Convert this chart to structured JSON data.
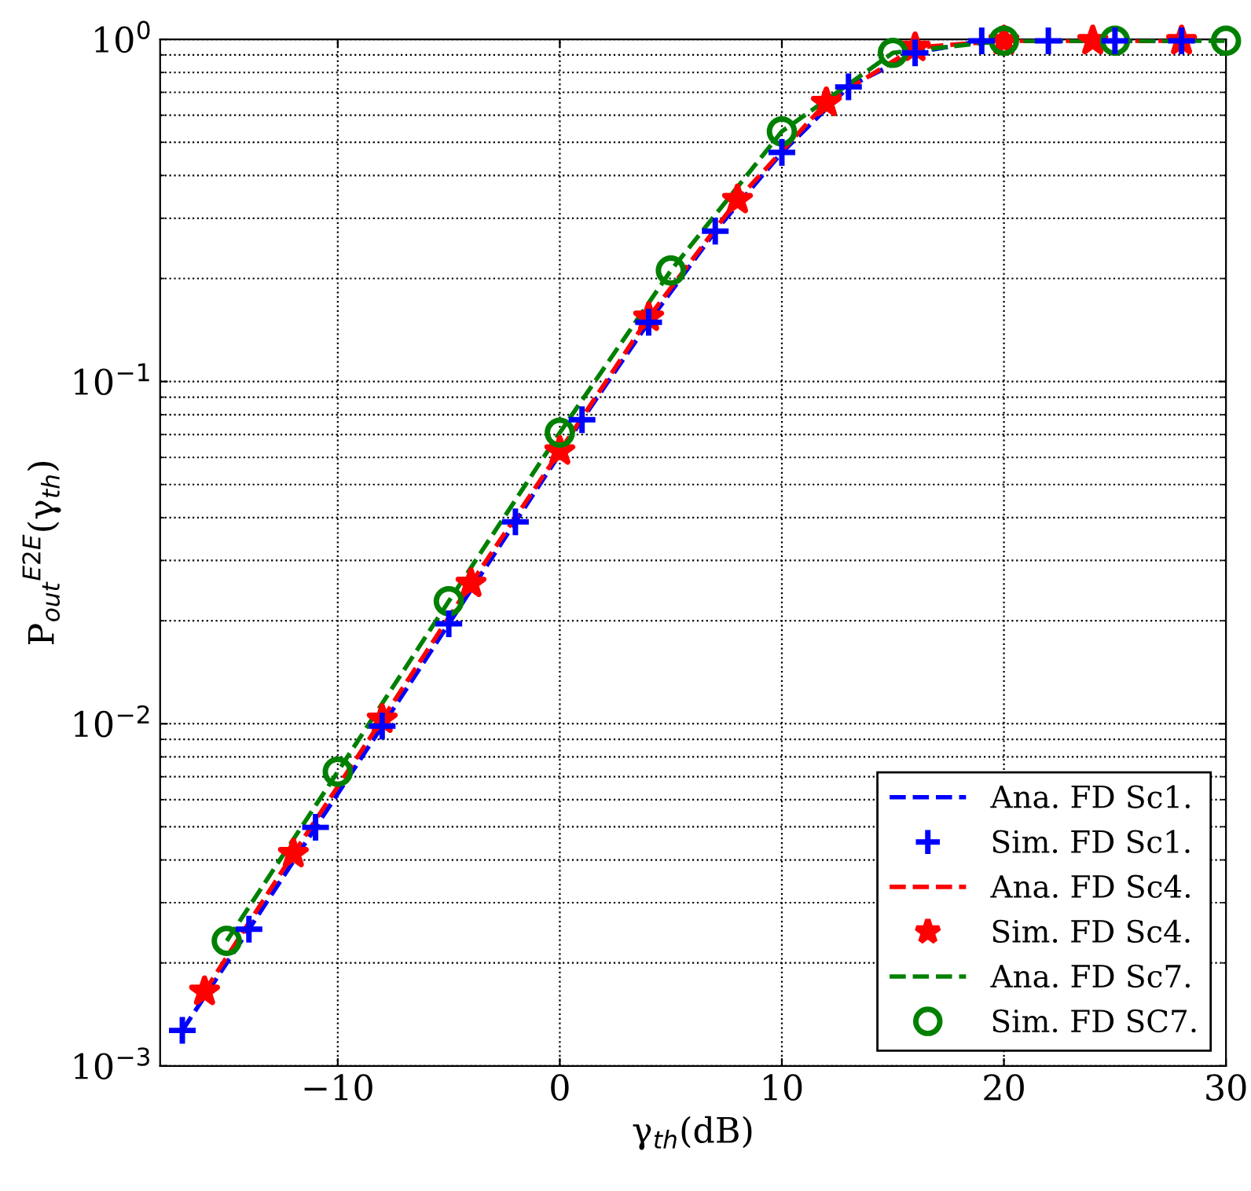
{
  "chart_data": {
    "type": "line",
    "xlabel": "γ$_{th}$(dB)",
    "ylabel": "P$_{out}$$^{E2E}$(γ$_{th}$)",
    "log": "y",
    "grid": true,
    "legend": "bottom right",
    "xlim": [
      -18,
      30
    ],
    "xticks": [
      {
        "value": -10,
        "label": "−10"
      },
      0,
      10,
      20,
      30
    ],
    "ylim": [
      0.001,
      1
    ],
    "yticks": [
      {
        "value": 0.001,
        "label": "10$^{−3}$"
      },
      {
        "value": 0.01,
        "label": "10$^{−2}$"
      },
      {
        "value": 0.1,
        "label": "10$^{−1}$"
      },
      {
        "value": 1,
        "label": "10$^{0}$"
      }
    ],
    "series": [
      {
        "name": "Ana. FD Sc1.",
        "color": "#0000ff",
        "marker": "none",
        "line_style": "dashed",
        "x": [
          -17,
          -14,
          -11,
          -8,
          -5,
          -2,
          1,
          4,
          7,
          10,
          13,
          16,
          19,
          22,
          25,
          28
        ],
        "values": [
          0.00127,
          0.00251,
          0.00498,
          0.00984,
          0.0196,
          0.0389,
          0.0773,
          0.149,
          0.275,
          0.467,
          0.726,
          0.913,
          0.99,
          0.99,
          0.99,
          0.99
        ]
      },
      {
        "name": "Sim. FD Sc1.",
        "type": "scatter",
        "color": "#0000ff",
        "marker": "cross",
        "x": [
          -17,
          -14,
          -11,
          -8,
          -5,
          -2,
          1,
          4,
          7,
          10,
          13,
          16,
          19,
          22,
          25,
          28
        ],
        "values": [
          0.00127,
          0.00251,
          0.00498,
          0.00984,
          0.0196,
          0.0389,
          0.0773,
          0.149,
          0.275,
          0.467,
          0.726,
          0.913,
          0.99,
          0.99,
          0.99,
          0.99
        ]
      },
      {
        "name": "Ana. FD Sc4.",
        "color": "#ff0000",
        "marker": "none",
        "line_style": "dashed",
        "x": [
          -16,
          -12,
          -8,
          -4,
          0,
          4,
          8,
          12,
          16,
          20,
          24,
          28
        ],
        "values": [
          0.00165,
          0.00417,
          0.0103,
          0.0257,
          0.0626,
          0.154,
          0.34,
          0.653,
          0.946,
          0.99,
          0.99,
          0.99
        ]
      },
      {
        "name": "Sim. FD Sc4.",
        "type": "scatter",
        "color": "#ff0000",
        "marker": "star",
        "x": [
          -16,
          -12,
          -8,
          -4,
          0,
          4,
          8,
          12,
          16,
          20,
          24,
          28
        ],
        "values": [
          0.00165,
          0.00417,
          0.0103,
          0.0257,
          0.0626,
          0.154,
          0.34,
          0.653,
          0.946,
          0.99,
          0.99,
          0.99
        ]
      },
      {
        "name": "Ana. FD Sc7.",
        "color": "#008000",
        "marker": "none",
        "line_style": "dashed",
        "x": [
          -15,
          -10,
          -5,
          0,
          5,
          10,
          15,
          20,
          25,
          30
        ],
        "values": [
          0.00232,
          0.00724,
          0.0228,
          0.0709,
          0.211,
          0.538,
          0.913,
          0.99,
          0.99,
          0.99
        ]
      },
      {
        "name": "Sim. FD SC7.",
        "type": "scatter",
        "color": "#008000",
        "marker": "circle",
        "x": [
          -15,
          -10,
          -5,
          0,
          5,
          10,
          15,
          20,
          25,
          30
        ],
        "values": [
          0.00232,
          0.00724,
          0.0228,
          0.0709,
          0.211,
          0.538,
          0.913,
          0.99,
          0.99,
          0.99
        ]
      }
    ]
  }
}
